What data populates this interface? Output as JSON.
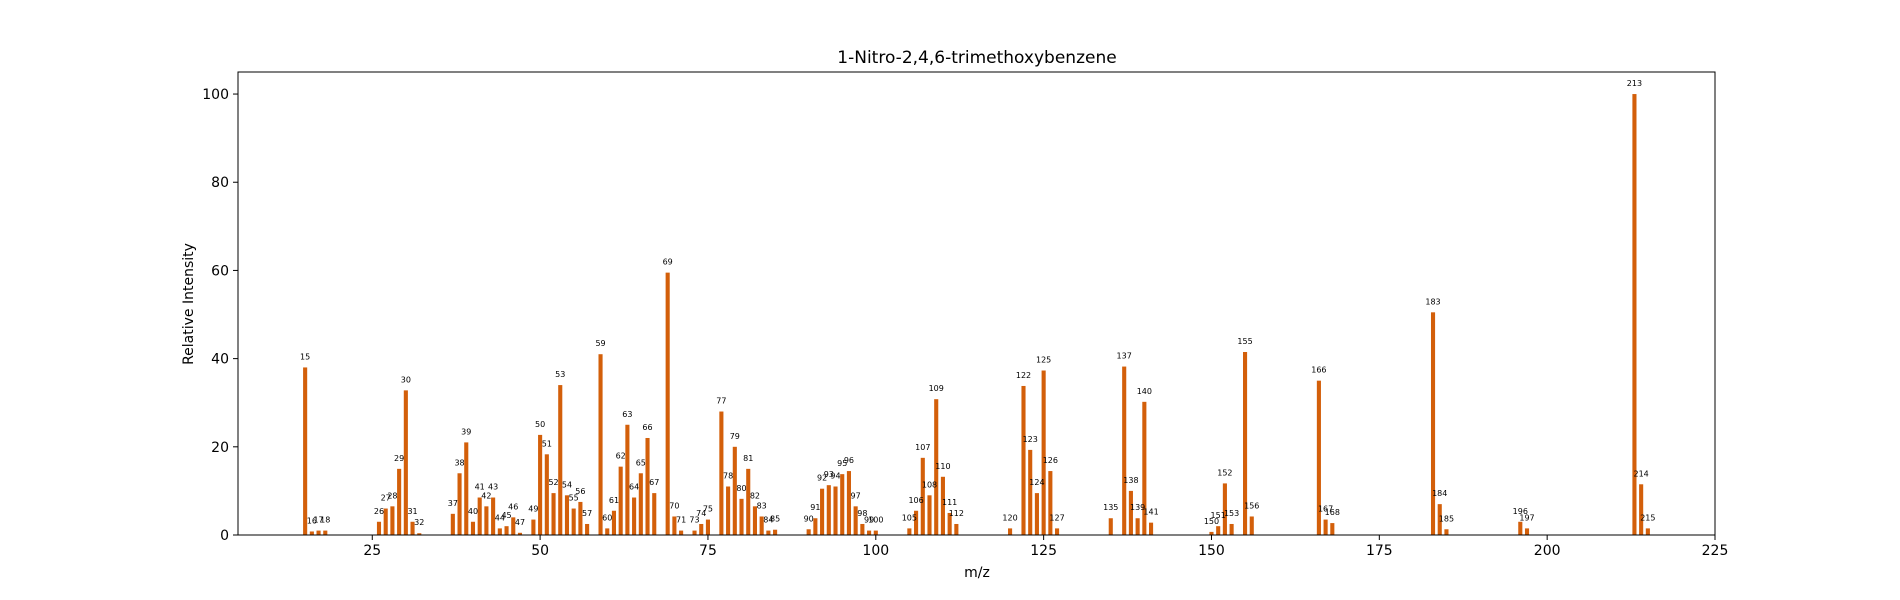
{
  "chart_data": {
    "type": "bar",
    "title": "1-Nitro-2,4,6-trimethoxybenzene",
    "xlabel": "m/z",
    "ylabel": "Relative Intensity",
    "xlim": [
      5,
      225
    ],
    "ylim": [
      0,
      105
    ],
    "xticks": [
      25,
      50,
      75,
      100,
      125,
      150,
      175,
      200,
      225
    ],
    "yticks": [
      0,
      20,
      40,
      60,
      80,
      100
    ],
    "grid": false,
    "bar_color": "#d35f0a",
    "x": [
      15,
      16,
      17,
      18,
      26,
      27,
      28,
      29,
      30,
      31,
      32,
      37,
      38,
      39,
      40,
      41,
      42,
      43,
      44,
      45,
      46,
      47,
      49,
      50,
      51,
      52,
      53,
      54,
      55,
      56,
      57,
      59,
      60,
      61,
      62,
      63,
      64,
      65,
      66,
      67,
      69,
      70,
      71,
      73,
      74,
      75,
      77,
      78,
      79,
      80,
      81,
      82,
      83,
      84,
      85,
      90,
      91,
      92,
      93,
      94,
      95,
      96,
      97,
      98,
      99,
      100,
      105,
      106,
      107,
      108,
      109,
      110,
      111,
      112,
      120,
      122,
      123,
      124,
      125,
      126,
      127,
      135,
      137,
      138,
      139,
      140,
      141,
      150,
      151,
      152,
      153,
      155,
      156,
      166,
      167,
      168,
      183,
      184,
      185,
      196,
      197,
      213,
      214,
      215
    ],
    "values": [
      38,
      0.8,
      1,
      1,
      3,
      6,
      6.5,
      15,
      32.8,
      3,
      0.4,
      4.8,
      14,
      21,
      3,
      8.5,
      6.5,
      8.5,
      1.5,
      2,
      4,
      0.5,
      3.5,
      22.7,
      18.3,
      9.5,
      34,
      9,
      6,
      7.5,
      2.5,
      41,
      1.5,
      5.5,
      15.5,
      25,
      8.5,
      14,
      22,
      9.5,
      59.5,
      4.2,
      1,
      1,
      2.5,
      3.5,
      28,
      11,
      20,
      8.2,
      15,
      6.5,
      4.2,
      1,
      1.2,
      1.3,
      3.8,
      10.5,
      11.3,
      11,
      13.8,
      14.5,
      6.5,
      2.5,
      1,
      1,
      1.5,
      5.5,
      17.5,
      9,
      30.8,
      13.2,
      5,
      2.5,
      1.5,
      33.8,
      19.3,
      9.5,
      37.3,
      14.5,
      1.5,
      3.8,
      38.2,
      10,
      3.8,
      30.2,
      2.8,
      0.7,
      2,
      11.7,
      2.5,
      41.5,
      4.2,
      35,
      3.5,
      2.7,
      50.5,
      7,
      1.3,
      3,
      1.5,
      100,
      11.5,
      1.5
    ]
  }
}
